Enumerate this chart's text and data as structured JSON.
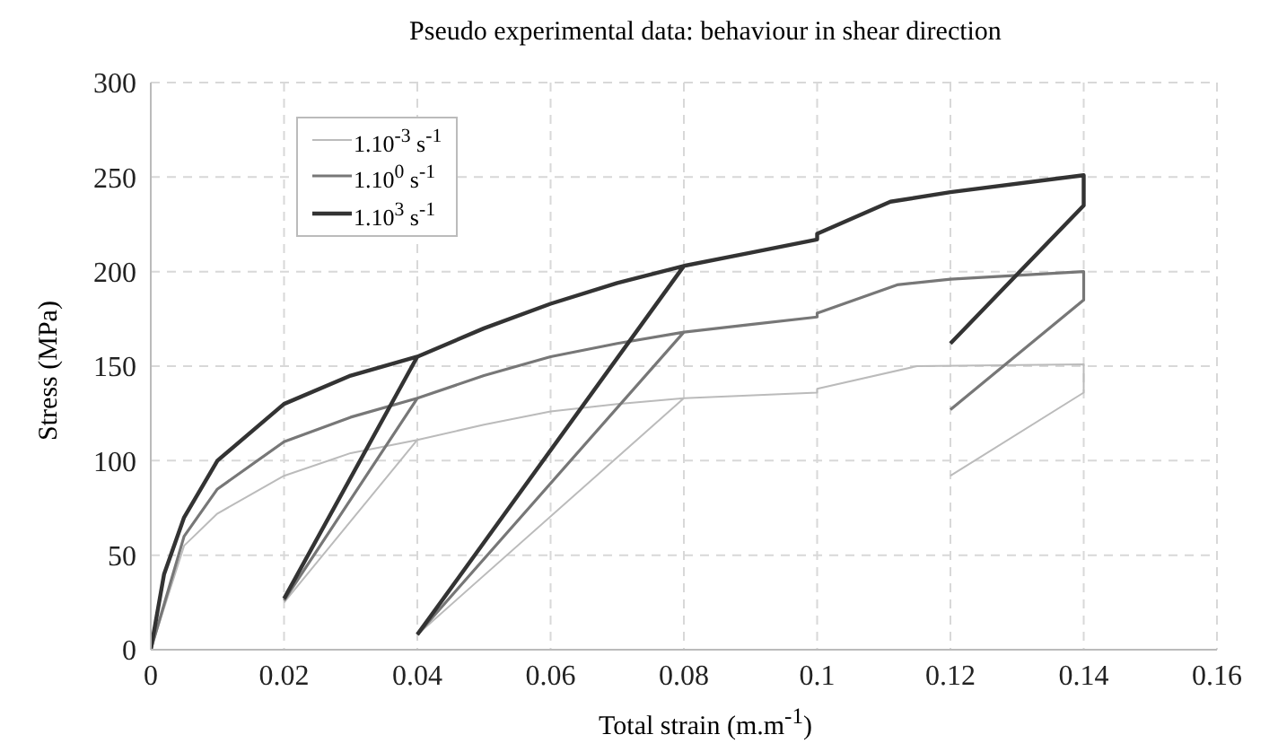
{
  "chart_data": {
    "type": "line",
    "title": "Pseudo experimental data: behaviour in shear direction",
    "xlabel": "Total strain (m.m$^{-1}$)",
    "ylabel": "Stress (MPa)",
    "xlim": [
      0,
      0.16
    ],
    "xticks": [
      0,
      0.02,
      0.04,
      0.06,
      0.08,
      0.1,
      0.12,
      0.14,
      0.16
    ],
    "ylim": [
      0,
      300
    ],
    "yticks": [
      0,
      50,
      100,
      150,
      200,
      250,
      300
    ],
    "grid": true,
    "legend": "top left",
    "marker": "none",
    "line_style": "solid",
    "series": [
      {
        "name": "1.10$^{-3}$ s$^{-1}$",
        "color": "#bbbbbb",
        "x": [
          0,
          0.005,
          0.01,
          0.02,
          0.03,
          0.04,
          0.05,
          0.06,
          0.07,
          0.08,
          0.1,
          0.1,
          0.115,
          0.14,
          0.14,
          0.12,
          null,
          0.02,
          0.04,
          null,
          0.04,
          0.08
        ],
        "values": [
          0,
          55,
          72,
          92,
          104,
          111,
          119,
          126,
          130,
          133,
          136,
          138,
          150,
          151,
          136,
          92,
          null,
          25,
          111,
          null,
          8,
          133
        ]
      },
      {
        "name": "1.10$^{0}$ s$^{-1}$",
        "color": "#777777",
        "x": [
          0,
          0.005,
          0.01,
          0.02,
          0.03,
          0.04,
          0.05,
          0.06,
          0.07,
          0.08,
          0.09,
          0.1,
          0.1,
          0.112,
          0.12,
          0.14,
          0.14,
          0.12,
          null,
          0.02,
          0.04,
          null,
          0.04,
          0.08
        ],
        "values": [
          0,
          60,
          85,
          110,
          123,
          133,
          145,
          155,
          162,
          168,
          172,
          176,
          178,
          193,
          196,
          200,
          185,
          127,
          null,
          26,
          133,
          null,
          8,
          168
        ]
      },
      {
        "name": "1.10$^{3}$ s$^{-1}$",
        "color": "#333333",
        "x": [
          0,
          0.002,
          0.005,
          0.01,
          0.02,
          0.03,
          0.04,
          0.05,
          0.06,
          0.07,
          0.08,
          0.09,
          0.1,
          0.1,
          0.111,
          0.12,
          0.14,
          0.14,
          0.12,
          null,
          0.02,
          0.04,
          null,
          0.04,
          0.08
        ],
        "values": [
          0,
          40,
          70,
          100,
          130,
          145,
          155,
          170,
          183,
          194,
          203,
          210,
          217,
          220,
          237,
          242,
          251,
          235,
          162,
          null,
          27,
          155,
          null,
          8,
          203
        ]
      }
    ]
  }
}
